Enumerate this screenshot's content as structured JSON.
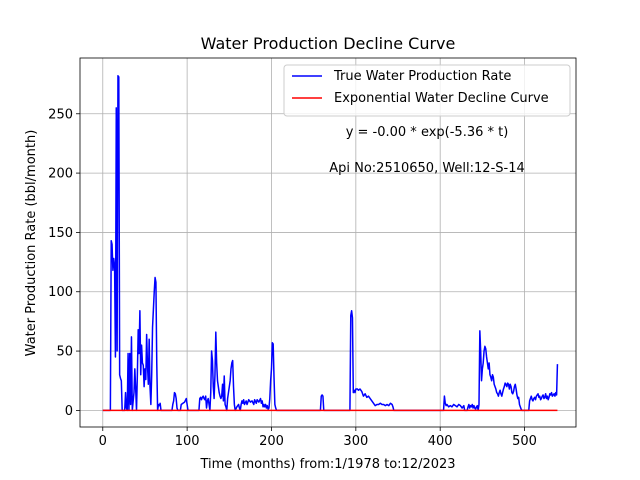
{
  "chart_data": {
    "type": "line",
    "title": "Water Production Decline Curve",
    "xlabel": "Time (months) from:1/1978 to:12/2023",
    "ylabel": "Water Production Rate (bbl/month)",
    "xlim": [
      -27,
      561
    ],
    "ylim": [
      -14,
      297
    ],
    "xticks": [
      0,
      100,
      200,
      300,
      400,
      500
    ],
    "yticks": [
      0,
      50,
      100,
      150,
      200,
      250
    ],
    "grid": true,
    "legend_position": "top-right",
    "annotations": [
      "y = -0.00 * exp(-5.36 * t)",
      "Api No:2510650, Well:12-S-14"
    ],
    "series": [
      {
        "name": "True Water Production Rate",
        "color": "#0000ff",
        "points": [
          [
            0,
            0
          ],
          [
            9,
            0
          ],
          [
            10,
            143
          ],
          [
            11,
            140
          ],
          [
            12,
            118
          ],
          [
            13,
            128
          ],
          [
            14,
            122
          ],
          [
            15,
            45
          ],
          [
            16,
            255
          ],
          [
            17,
            50
          ],
          [
            18,
            282
          ],
          [
            19,
            281
          ],
          [
            20,
            30
          ],
          [
            21,
            27
          ],
          [
            22,
            25
          ],
          [
            23,
            0
          ],
          [
            26,
            0
          ],
          [
            27,
            15
          ],
          [
            28,
            2
          ],
          [
            29,
            0
          ],
          [
            30,
            48
          ],
          [
            31,
            0
          ],
          [
            32,
            48
          ],
          [
            33,
            5
          ],
          [
            34,
            62
          ],
          [
            35,
            0
          ],
          [
            37,
            15
          ],
          [
            38,
            35
          ],
          [
            39,
            18
          ],
          [
            40,
            0
          ],
          [
            41,
            30
          ],
          [
            42,
            68
          ],
          [
            43,
            48
          ],
          [
            44,
            84
          ],
          [
            45,
            30
          ],
          [
            46,
            55
          ],
          [
            47,
            40
          ],
          [
            48,
            38
          ],
          [
            49,
            20
          ],
          [
            50,
            35
          ],
          [
            51,
            26
          ],
          [
            52,
            64
          ],
          [
            53,
            38
          ],
          [
            54,
            22
          ],
          [
            55,
            60
          ],
          [
            56,
            20
          ],
          [
            57,
            5
          ],
          [
            58,
            30
          ],
          [
            59,
            70
          ],
          [
            60,
            85
          ],
          [
            61,
            100
          ],
          [
            62,
            112
          ],
          [
            63,
            108
          ],
          [
            64,
            40
          ],
          [
            65,
            0
          ],
          [
            66,
            5
          ],
          [
            67,
            4
          ],
          [
            68,
            6
          ],
          [
            69,
            0
          ],
          [
            82,
            0
          ],
          [
            83,
            5
          ],
          [
            84,
            8
          ],
          [
            85,
            15
          ],
          [
            86,
            14
          ],
          [
            87,
            10
          ],
          [
            88,
            2
          ],
          [
            89,
            0
          ],
          [
            92,
            0
          ],
          [
            93,
            5
          ],
          [
            95,
            6
          ],
          [
            97,
            7
          ],
          [
            99,
            10
          ],
          [
            100,
            5
          ],
          [
            101,
            0
          ],
          [
            114,
            0
          ],
          [
            115,
            10
          ],
          [
            116,
            11
          ],
          [
            117,
            9
          ],
          [
            118,
            11
          ],
          [
            119,
            12
          ],
          [
            120,
            10
          ],
          [
            121,
            9
          ],
          [
            122,
            12
          ],
          [
            123,
            2
          ],
          [
            124,
            8
          ],
          [
            125,
            10
          ],
          [
            126,
            5
          ],
          [
            127,
            0
          ],
          [
            128,
            15
          ],
          [
            129,
            50
          ],
          [
            130,
            42
          ],
          [
            131,
            20
          ],
          [
            132,
            10
          ],
          [
            133,
            30
          ],
          [
            134,
            66
          ],
          [
            135,
            40
          ],
          [
            136,
            25
          ],
          [
            137,
            20
          ],
          [
            138,
            15
          ],
          [
            139,
            12
          ],
          [
            140,
            10
          ],
          [
            141,
            12
          ],
          [
            142,
            22
          ],
          [
            143,
            8
          ],
          [
            144,
            29
          ],
          [
            145,
            5
          ],
          [
            146,
            3
          ],
          [
            147,
            0
          ],
          [
            148,
            10
          ],
          [
            149,
            15
          ],
          [
            150,
            20
          ],
          [
            151,
            25
          ],
          [
            152,
            35
          ],
          [
            153,
            40
          ],
          [
            154,
            42
          ],
          [
            155,
            20
          ],
          [
            156,
            5
          ],
          [
            157,
            0
          ],
          [
            159,
            3
          ],
          [
            161,
            5
          ],
          [
            162,
            2
          ],
          [
            163,
            0
          ],
          [
            164,
            5
          ],
          [
            165,
            8
          ],
          [
            166,
            6
          ],
          [
            167,
            9
          ],
          [
            168,
            5
          ],
          [
            170,
            8
          ],
          [
            171,
            5
          ],
          [
            173,
            9
          ],
          [
            175,
            7
          ],
          [
            177,
            8
          ],
          [
            179,
            5
          ],
          [
            180,
            9
          ],
          [
            182,
            6
          ],
          [
            183,
            9
          ],
          [
            185,
            7
          ],
          [
            187,
            10
          ],
          [
            188,
            6
          ],
          [
            189,
            8
          ],
          [
            190,
            3
          ],
          [
            191,
            5
          ],
          [
            192,
            3
          ],
          [
            193,
            5
          ],
          [
            194,
            2
          ],
          [
            195,
            4
          ],
          [
            196,
            1
          ],
          [
            197,
            2
          ],
          [
            198,
            10
          ],
          [
            199,
            25
          ],
          [
            200,
            35
          ],
          [
            201,
            57
          ],
          [
            202,
            56
          ],
          [
            203,
            28
          ],
          [
            204,
            5
          ],
          [
            205,
            2
          ],
          [
            206,
            0
          ],
          [
            258,
            0
          ],
          [
            259,
            12
          ],
          [
            260,
            13
          ],
          [
            261,
            12
          ],
          [
            262,
            0
          ],
          [
            293,
            0
          ],
          [
            294,
            80
          ],
          [
            295,
            84
          ],
          [
            296,
            78
          ],
          [
            297,
            15
          ],
          [
            298,
            17
          ],
          [
            299,
            15
          ],
          [
            300,
            18
          ],
          [
            302,
            18
          ],
          [
            303,
            17
          ],
          [
            305,
            18
          ],
          [
            307,
            16
          ],
          [
            309,
            12
          ],
          [
            311,
            14
          ],
          [
            313,
            11
          ],
          [
            315,
            12
          ],
          [
            317,
            10
          ],
          [
            319,
            8
          ],
          [
            321,
            6
          ],
          [
            323,
            4
          ],
          [
            325,
            5
          ],
          [
            327,
            5
          ],
          [
            329,
            6
          ],
          [
            331,
            5
          ],
          [
            333,
            5
          ],
          [
            335,
            4
          ],
          [
            337,
            5
          ],
          [
            339,
            4
          ],
          [
            341,
            6
          ],
          [
            343,
            5
          ],
          [
            344,
            3
          ],
          [
            345,
            0
          ],
          [
            404,
            0
          ],
          [
            405,
            12
          ],
          [
            406,
            6
          ],
          [
            407,
            4
          ],
          [
            408,
            5
          ],
          [
            410,
            3
          ],
          [
            412,
            4
          ],
          [
            414,
            3
          ],
          [
            416,
            5
          ],
          [
            418,
            4
          ],
          [
            420,
            3
          ],
          [
            422,
            5
          ],
          [
            424,
            4
          ],
          [
            426,
            2
          ],
          [
            428,
            4
          ],
          [
            429,
            0
          ],
          [
            432,
            0
          ],
          [
            433,
            3
          ],
          [
            434,
            5
          ],
          [
            435,
            2
          ],
          [
            436,
            4
          ],
          [
            437,
            3
          ],
          [
            438,
            5
          ],
          [
            439,
            2
          ],
          [
            440,
            4
          ],
          [
            441,
            2
          ],
          [
            442,
            1
          ],
          [
            443,
            3
          ],
          [
            444,
            4
          ],
          [
            445,
            0
          ],
          [
            446,
            5
          ],
          [
            447,
            67
          ],
          [
            448,
            50
          ],
          [
            449,
            25
          ],
          [
            450,
            35
          ],
          [
            451,
            40
          ],
          [
            452,
            50
          ],
          [
            453,
            54
          ],
          [
            454,
            52
          ],
          [
            455,
            45
          ],
          [
            456,
            40
          ],
          [
            457,
            35
          ],
          [
            458,
            40
          ],
          [
            459,
            30
          ],
          [
            460,
            28
          ],
          [
            461,
            25
          ],
          [
            462,
            30
          ],
          [
            463,
            28
          ],
          [
            464,
            22
          ],
          [
            465,
            20
          ],
          [
            466,
            18
          ],
          [
            467,
            15
          ],
          [
            468,
            14
          ],
          [
            469,
            12
          ],
          [
            470,
            15
          ],
          [
            471,
            17
          ],
          [
            472,
            14
          ],
          [
            473,
            12
          ],
          [
            474,
            15
          ],
          [
            475,
            18
          ],
          [
            476,
            20
          ],
          [
            477,
            23
          ],
          [
            478,
            22
          ],
          [
            479,
            20
          ],
          [
            480,
            23
          ],
          [
            481,
            22
          ],
          [
            482,
            18
          ],
          [
            483,
            22
          ],
          [
            484,
            20
          ],
          [
            485,
            15
          ],
          [
            486,
            14
          ],
          [
            487,
            16
          ],
          [
            488,
            20
          ],
          [
            489,
            22
          ],
          [
            490,
            18
          ],
          [
            491,
            13
          ],
          [
            492,
            10
          ],
          [
            493,
            11
          ],
          [
            494,
            5
          ],
          [
            495,
            3
          ],
          [
            496,
            1
          ],
          [
            497,
            0
          ],
          [
            505,
            0
          ],
          [
            506,
            8
          ],
          [
            507,
            10
          ],
          [
            508,
            12
          ],
          [
            509,
            9
          ],
          [
            510,
            8
          ],
          [
            511,
            10
          ],
          [
            512,
            11
          ],
          [
            513,
            9
          ],
          [
            514,
            12
          ],
          [
            515,
            13
          ],
          [
            516,
            14
          ],
          [
            517,
            11
          ],
          [
            518,
            12
          ],
          [
            519,
            9
          ],
          [
            520,
            10
          ],
          [
            521,
            12
          ],
          [
            522,
            13
          ],
          [
            523,
            10
          ],
          [
            524,
            11
          ],
          [
            525,
            14
          ],
          [
            526,
            10
          ],
          [
            527,
            12
          ],
          [
            528,
            9
          ],
          [
            529,
            11
          ],
          [
            530,
            14
          ],
          [
            531,
            13
          ],
          [
            532,
            15
          ],
          [
            533,
            12
          ],
          [
            534,
            13
          ],
          [
            535,
            14
          ],
          [
            536,
            12
          ],
          [
            537,
            15
          ],
          [
            538,
            13
          ],
          [
            539,
            39
          ]
        ]
      },
      {
        "name": "Exponential Water Decline Curve",
        "color": "#ff0000",
        "points": [
          [
            0,
            0
          ],
          [
            539,
            0
          ]
        ]
      }
    ]
  }
}
